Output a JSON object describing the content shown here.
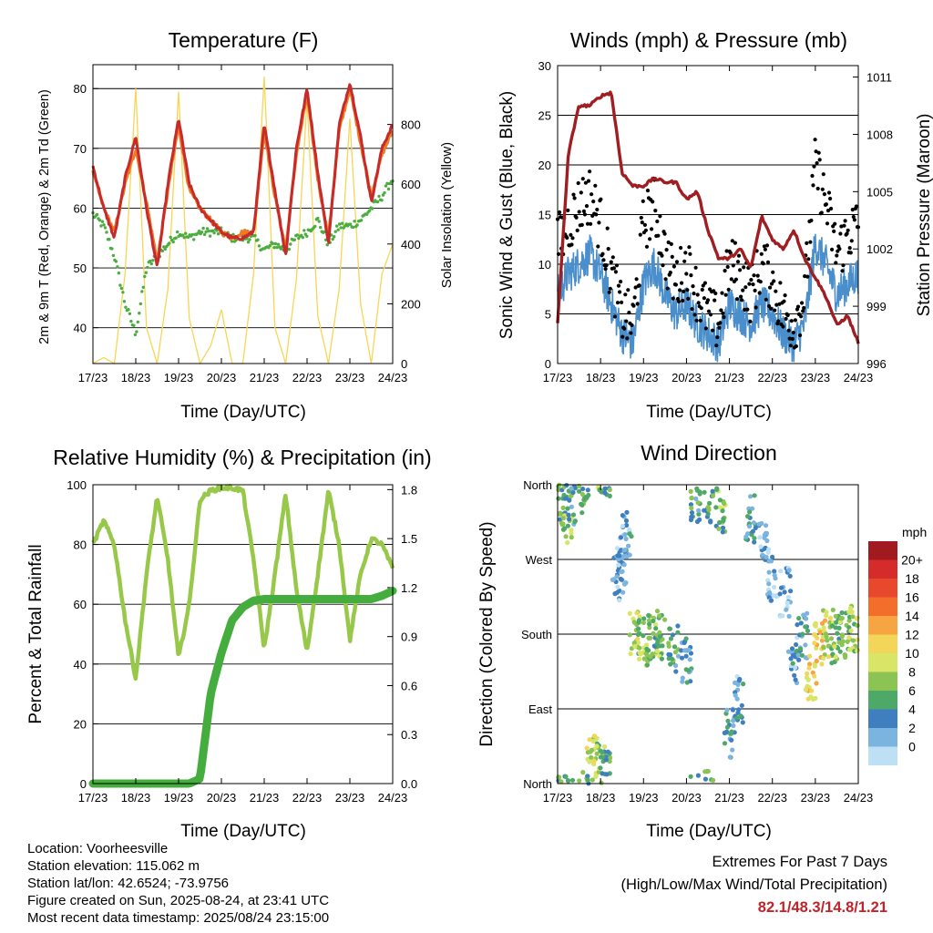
{
  "x_ticks": [
    "17/23",
    "18/23",
    "19/23",
    "20/23",
    "21/23",
    "22/23",
    "23/23",
    "24/23"
  ],
  "x_label": "Time (Day/UTC)",
  "colors": {
    "temp2m": "#c62a2a",
    "temp9m": "#f07a24",
    "dewpoint": "#4bad3f",
    "solar": "#f7d557",
    "wind": "#4a8fcc",
    "gust": "#000000",
    "pressure": "#a01e22",
    "rh": "#98c84a",
    "precip": "#45ad3d",
    "extreme_text": "#c0242a"
  },
  "titles": {
    "temperature": "Temperature (F)",
    "winds": "Winds (mph) & Pressure (mb)",
    "humidity": "Relative Humidity (%) & Precipitation (in)",
    "direction": "Wind Direction"
  },
  "axis_labels": {
    "temp_left": "2m & 9m T (Red, Orange) & 2m Td (Green)",
    "temp_right": "Solar Insolation (Yellow)",
    "wind_left": "Sonic Wind & Gust (Blue, Black)",
    "wind_right": "Station Pressure (Maroon)",
    "rh_left": "Percent & Total Rainfall",
    "dir_left": "Direction (Colored By Speed)"
  },
  "legend": {
    "title": "mph",
    "labels": [
      "20+",
      "18",
      "16",
      "14",
      "12",
      "10",
      "8",
      "6",
      "4",
      "2",
      "0"
    ],
    "colors": [
      "#a11a1f",
      "#d52b2b",
      "#e8492d",
      "#f36d2b",
      "#f7a443",
      "#f3d55a",
      "#d8e566",
      "#8bc452",
      "#4ea868",
      "#3f7fc0",
      "#7cb4e0",
      "#bde0f5"
    ]
  },
  "info": {
    "location": "Location: Voorheesville",
    "elevation": "Station elevation: 115.062 m",
    "latlon": "Station lat/lon: 42.6524; -73.9756",
    "created": "Figure created on Sun, 2025-08-24, at 23:41 UTC",
    "recent": "Most recent data timestamp: 2025/08/24 23:15:00"
  },
  "extremes": {
    "title": "Extremes For Past 7 Days",
    "subtitle": "(High/Low/Max Wind/Total Precipitation)",
    "values": "82.1/48.3/14.8/1.21"
  },
  "chart_data": [
    {
      "type": "line",
      "title": "Temperature (F)",
      "xlabel": "Time (Day/UTC)",
      "ylabel": "2m & 9m T (Red, Orange) & 2m Td (Green)",
      "y2label": "Solar Insolation (Yellow)",
      "ylim": [
        34,
        84
      ],
      "y_ticks": [
        40,
        50,
        60,
        70,
        80
      ],
      "y2lim": [
        0,
        1000
      ],
      "y2_ticks": [
        0,
        200,
        400,
        600,
        800
      ],
      "x": [
        0,
        0.25,
        0.5,
        0.75,
        1,
        1.25,
        1.5,
        1.75,
        2,
        2.25,
        2.5,
        2.75,
        3,
        3.25,
        3.5,
        3.75,
        4,
        4.25,
        4.5,
        4.75,
        5,
        5.25,
        5.5,
        5.75,
        6,
        6.25,
        6.5,
        6.75,
        7
      ],
      "series": [
        {
          "name": "2m T",
          "values": [
            67,
            60,
            55,
            65,
            72,
            60,
            50,
            64,
            75,
            64,
            60,
            58,
            56,
            55,
            55,
            56,
            74,
            63,
            52,
            70,
            80,
            66,
            54,
            74,
            81,
            72,
            61,
            70,
            74
          ]
        },
        {
          "name": "9m T",
          "values": [
            66,
            60,
            56,
            64,
            70,
            61,
            51,
            63,
            74,
            63,
            60,
            58,
            56,
            55,
            56,
            56,
            73,
            62,
            53,
            69,
            79,
            65,
            55,
            73,
            80,
            71,
            62,
            69,
            73
          ]
        },
        {
          "name": "2m Td",
          "values": [
            59,
            57,
            52,
            44,
            39,
            50,
            52,
            54,
            56,
            55,
            56,
            56,
            56,
            55,
            55,
            55,
            53,
            54,
            53,
            55,
            56,
            58,
            54,
            57,
            57,
            58,
            60,
            62,
            65
          ]
        },
        {
          "name": "Solar",
          "values": [
            0,
            20,
            0,
            300,
            920,
            120,
            0,
            250,
            910,
            150,
            0,
            60,
            180,
            0,
            0,
            300,
            960,
            120,
            0,
            280,
            880,
            160,
            0,
            250,
            820,
            200,
            0,
            300,
            400
          ]
        }
      ]
    },
    {
      "type": "line",
      "title": "Winds (mph) & Pressure (mb)",
      "xlabel": "Time (Day/UTC)",
      "ylabel": "Sonic Wind & Gust (Blue, Black)",
      "y2label": "Station Pressure (Maroon)",
      "ylim": [
        0,
        30
      ],
      "y_ticks": [
        0,
        5,
        10,
        15,
        20,
        25,
        30
      ],
      "y2lim": [
        996,
        1011.6
      ],
      "y2_ticks": [
        996,
        999,
        1002,
        1005,
        1008,
        1011
      ],
      "x": [
        0,
        0.25,
        0.5,
        0.75,
        1,
        1.25,
        1.5,
        1.75,
        2,
        2.25,
        2.5,
        2.75,
        3,
        3.25,
        3.5,
        3.75,
        4,
        4.25,
        4.5,
        4.75,
        5,
        5.25,
        5.5,
        5.75,
        6,
        6.25,
        6.5,
        6.75,
        7
      ],
      "series": [
        {
          "name": "Wind",
          "values": [
            7,
            9,
            10,
            11,
            9,
            6,
            3,
            2,
            8,
            10,
            7,
            5,
            6,
            4,
            3,
            2,
            6,
            5,
            4,
            6,
            5,
            3,
            2,
            4,
            12,
            10,
            7,
            8,
            9
          ]
        },
        {
          "name": "Gust",
          "values": [
            12,
            14,
            16,
            17,
            14,
            9,
            5,
            4,
            14,
            16,
            11,
            8,
            10,
            7,
            5,
            4,
            10,
            9,
            7,
            10,
            8,
            5,
            4,
            7,
            20,
            16,
            11,
            13,
            14
          ]
        },
        {
          "name": "Pressure",
          "values": [
            998.1,
            1007.0,
            1009.5,
            1009.5,
            1010.0,
            1010.2,
            1006.0,
            1005.3,
            1005.3,
            1005.7,
            1005.5,
            1005.5,
            1004.6,
            1005.0,
            1003.0,
            1001.5,
            1001.5,
            1002.0,
            1001.0,
            1003.7,
            1002.5,
            1002.0,
            1003.0,
            1001.5,
            1000.5,
            999.5,
            998.0,
            998.5,
            997.1
          ]
        }
      ]
    },
    {
      "type": "line",
      "title": "Relative Humidity (%) & Precipitation (in)",
      "xlabel": "Time (Day/UTC)",
      "ylabel": "Percent & Total Rainfall",
      "ylim": [
        0,
        100
      ],
      "y_ticks": [
        0,
        20,
        40,
        60,
        80,
        100
      ],
      "y2lim": [
        0,
        1.83
      ],
      "y2_ticks": [
        "0.0",
        "0.3",
        "0.6",
        "0.9",
        "1.2",
        "1.5",
        "1.8"
      ],
      "x": [
        0,
        0.25,
        0.5,
        0.75,
        1,
        1.25,
        1.5,
        1.75,
        2,
        2.25,
        2.5,
        2.75,
        3,
        3.25,
        3.5,
        3.75,
        4,
        4.25,
        4.5,
        4.75,
        5,
        5.25,
        5.5,
        5.75,
        6,
        6.25,
        6.5,
        6.75,
        7
      ],
      "series": [
        {
          "name": "RH",
          "values": [
            80,
            88,
            80,
            55,
            35,
            70,
            96,
            75,
            42,
            60,
            95,
            98,
            99,
            99,
            98,
            75,
            45,
            70,
            97,
            65,
            44,
            70,
            98,
            80,
            48,
            70,
            82,
            80,
            72
          ]
        },
        {
          "name": "Precip",
          "values": [
            0,
            0,
            0,
            0,
            0,
            0,
            0,
            0,
            0,
            0,
            0.03,
            0.55,
            0.8,
            1.0,
            1.08,
            1.12,
            1.13,
            1.13,
            1.13,
            1.13,
            1.13,
            1.13,
            1.13,
            1.13,
            1.13,
            1.13,
            1.13,
            1.15,
            1.18
          ]
        }
      ]
    },
    {
      "type": "scatter",
      "title": "Wind Direction",
      "xlabel": "Time (Day/UTC)",
      "ylabel": "Direction (Colored By Speed)",
      "y_ticks": [
        "North",
        "East",
        "South",
        "West",
        "North"
      ],
      "ylim": [
        0,
        360
      ],
      "x": [
        0.1,
        0.2,
        0.3,
        0.6,
        0.8,
        1.0,
        1.1,
        1.4,
        1.5,
        1.6,
        1.8,
        2.0,
        2.2,
        2.4,
        2.7,
        3.0,
        3.2,
        3.5,
        3.8,
        4.0,
        4.2,
        4.5,
        4.8,
        5.0,
        5.3,
        5.5,
        5.7,
        5.9,
        6.1,
        6.3,
        6.5,
        6.7,
        6.9
      ],
      "values": [
        340,
        320,
        335,
        345,
        30,
        20,
        10,
        250,
        270,
        300,
        180,
        170,
        175,
        180,
        160,
        150,
        340,
        345,
        330,
        60,
        100,
        320,
        290,
        250,
        230,
        150,
        180,
        130,
        170,
        180,
        175,
        180,
        185
      ],
      "speeds": [
        6,
        8,
        5,
        7,
        10,
        8,
        6,
        3,
        2,
        3,
        9,
        8,
        7,
        7,
        5,
        4,
        5,
        6,
        7,
        4,
        3,
        4,
        3,
        2,
        2,
        3,
        4,
        11,
        12,
        9,
        7,
        8,
        9
      ]
    }
  ]
}
